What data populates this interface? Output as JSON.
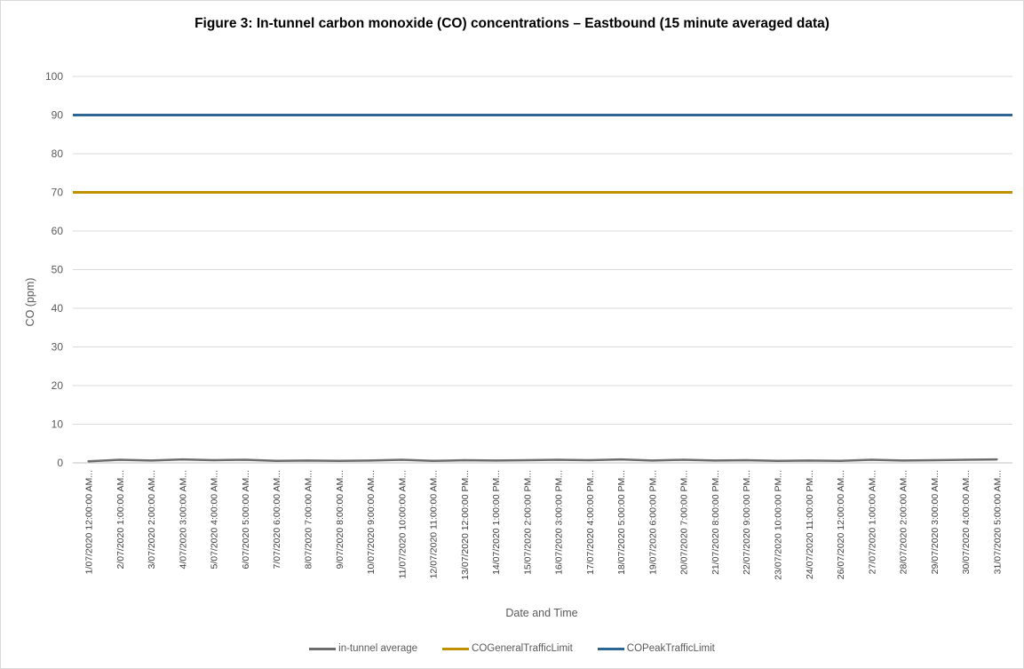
{
  "chart_data": {
    "type": "line",
    "title": "Figure 3: In-tunnel carbon monoxide (CO) concentrations – Eastbound (15 minute averaged data)",
    "xlabel": "Date and Time",
    "ylabel": "CO (ppm)",
    "ylim": [
      0,
      100
    ],
    "yticks": [
      0,
      10,
      20,
      30,
      40,
      50,
      60,
      70,
      80,
      90,
      100
    ],
    "grid": true,
    "legend_position": "bottom",
    "categories": [
      "1/07/2020 12:00:00 AM...",
      "2/07/2020 1:00:00 AM...",
      "3/07/2020 2:00:00 AM...",
      "4/07/2020 3:00:00 AM...",
      "5/07/2020 4:00:00 AM...",
      "6/07/2020 5:00:00 AM...",
      "7/07/2020 6:00:00 AM...",
      "8/07/2020 7:00:00 AM...",
      "9/07/2020 8:00:00 AM...",
      "10/07/2020 9:00:00 AM...",
      "11/07/2020 10:00:00 AM...",
      "12/07/2020 11:00:00 AM...",
      "13/07/2020 12:00:00 PM...",
      "14/07/2020 1:00:00 PM...",
      "15/07/2020 2:00:00 PM...",
      "16/07/2020 3:00:00 PM...",
      "17/07/2020 4:00:00 PM...",
      "18/07/2020 5:00:00 PM...",
      "19/07/2020 6:00:00 PM...",
      "20/07/2020 7:00:00 PM...",
      "21/07/2020 8:00:00 PM...",
      "22/07/2020 9:00:00 PM...",
      "23/07/2020 10:00:00 PM...",
      "24/07/2020 11:00:00 PM...",
      "26/07/2020 12:00:00 AM...",
      "27/07/2020 1:00:00 AM...",
      "28/07/2020 2:00:00 AM...",
      "29/07/2020 3:00:00 AM...",
      "30/07/2020 4:00:00 AM...",
      "31/07/2020 5:00:00 AM..."
    ],
    "series": [
      {
        "name": "in-tunnel average",
        "color": "#6d6d6d",
        "values": [
          0.4,
          0.8,
          0.6,
          0.9,
          0.7,
          0.8,
          0.5,
          0.6,
          0.5,
          0.6,
          0.8,
          0.5,
          0.7,
          0.6,
          0.7,
          0.8,
          0.7,
          0.9,
          0.6,
          0.8,
          0.6,
          0.7,
          0.5,
          0.6,
          0.5,
          0.8,
          0.6,
          0.7,
          0.8,
          0.9
        ]
      },
      {
        "name": "COGeneralTrafficLimit",
        "color": "#bf9000",
        "values": [
          70,
          70,
          70,
          70,
          70,
          70,
          70,
          70,
          70,
          70,
          70,
          70,
          70,
          70,
          70,
          70,
          70,
          70,
          70,
          70,
          70,
          70,
          70,
          70,
          70,
          70,
          70,
          70,
          70,
          70
        ]
      },
      {
        "name": "COPeakTrafficLimit",
        "color": "#2e6593",
        "values": [
          90,
          90,
          90,
          90,
          90,
          90,
          90,
          90,
          90,
          90,
          90,
          90,
          90,
          90,
          90,
          90,
          90,
          90,
          90,
          90,
          90,
          90,
          90,
          90,
          90,
          90,
          90,
          90,
          90,
          90
        ]
      }
    ]
  }
}
